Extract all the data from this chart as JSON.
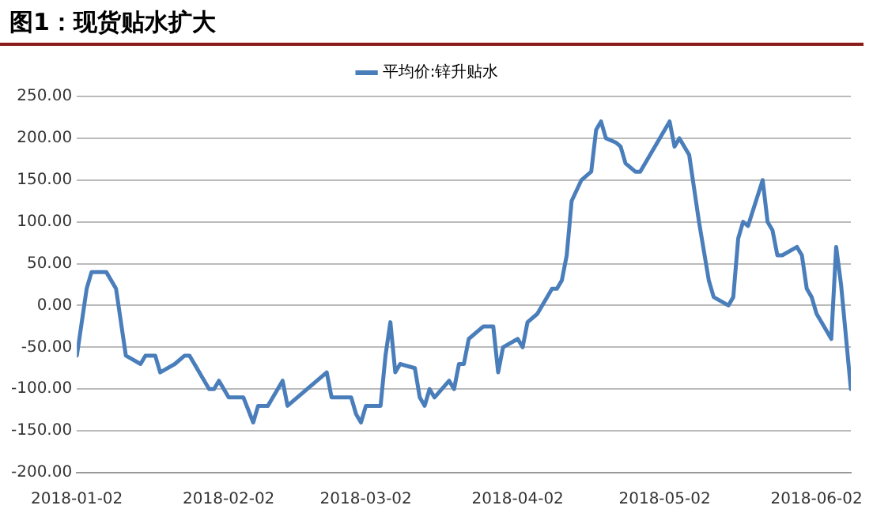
{
  "chart_data": {
    "type": "line",
    "title": "图1：现货贴水扩大",
    "x": [
      "2018-01-02",
      "2018-01-04",
      "2018-01-05",
      "2018-01-08",
      "2018-01-10",
      "2018-01-12",
      "2018-01-15",
      "2018-01-16",
      "2018-01-18",
      "2018-01-19",
      "2018-01-22",
      "2018-01-24",
      "2018-01-25",
      "2018-01-29",
      "2018-01-30",
      "2018-01-31",
      "2018-02-02",
      "2018-02-05",
      "2018-02-07",
      "2018-02-08",
      "2018-02-10",
      "2018-02-13",
      "2018-02-14",
      "2018-02-22",
      "2018-02-23",
      "2018-02-27",
      "2018-02-28",
      "2018-03-01",
      "2018-03-02",
      "2018-03-05",
      "2018-03-06",
      "2018-03-07",
      "2018-03-08",
      "2018-03-09",
      "2018-03-12",
      "2018-03-13",
      "2018-03-14",
      "2018-03-15",
      "2018-03-16",
      "2018-03-19",
      "2018-03-20",
      "2018-03-21",
      "2018-03-22",
      "2018-03-23",
      "2018-03-26",
      "2018-03-28",
      "2018-03-29",
      "2018-03-30",
      "2018-04-02",
      "2018-04-03",
      "2018-04-04",
      "2018-04-06",
      "2018-04-09",
      "2018-04-10",
      "2018-04-11",
      "2018-04-12",
      "2018-04-13",
      "2018-04-15",
      "2018-04-17",
      "2018-04-18",
      "2018-04-19",
      "2018-04-20",
      "2018-04-22",
      "2018-04-23",
      "2018-04-24",
      "2018-04-26",
      "2018-04-27",
      "2018-05-03",
      "2018-05-04",
      "2018-05-05",
      "2018-05-07",
      "2018-05-09",
      "2018-05-11",
      "2018-05-12",
      "2018-05-15",
      "2018-05-16",
      "2018-05-17",
      "2018-05-18",
      "2018-05-19",
      "2018-05-22",
      "2018-05-23",
      "2018-05-24",
      "2018-05-25",
      "2018-05-26",
      "2018-05-29",
      "2018-05-30",
      "2018-05-31",
      "2018-06-01",
      "2018-06-02",
      "2018-06-03",
      "2018-06-05",
      "2018-06-06",
      "2018-06-07",
      "2018-06-09"
    ],
    "series": [
      {
        "name": "平均价:锌升贴水",
        "color": "#4a7ebb",
        "values": [
          -60,
          20,
          40,
          40,
          20,
          -60,
          -70,
          -60,
          -60,
          -80,
          -70,
          -60,
          -60,
          -100,
          -100,
          -90,
          -110,
          -110,
          -140,
          -120,
          -120,
          -90,
          -120,
          -80,
          -110,
          -110,
          -130,
          -140,
          -120,
          -120,
          -60,
          -20,
          -80,
          -70,
          -75,
          -110,
          -120,
          -100,
          -110,
          -90,
          -100,
          -70,
          -70,
          -40,
          -25,
          -25,
          -80,
          -50,
          -40,
          -50,
          -20,
          -10,
          20,
          20,
          30,
          60,
          125,
          150,
          160,
          210,
          220,
          200,
          195,
          190,
          170,
          160,
          160,
          220,
          190,
          200,
          180,
          100,
          30,
          10,
          0,
          10,
          80,
          100,
          95,
          150,
          100,
          90,
          60,
          60,
          70,
          60,
          20,
          10,
          -10,
          -20,
          -40,
          70,
          25,
          -100
        ]
      }
    ],
    "xlim": [
      "2018-01-02",
      "2018-06-09"
    ],
    "xticks": [
      "2018-01-02",
      "2018-02-02",
      "2018-03-02",
      "2018-04-02",
      "2018-05-02",
      "2018-06-02"
    ],
    "ylim": [
      -200,
      250
    ],
    "yticks": [
      {
        "value": -200,
        "label": "-200.00"
      },
      {
        "value": -150,
        "label": "-150.00"
      },
      {
        "value": -100,
        "label": "-100.00"
      },
      {
        "value": -50,
        "label": "-50.00"
      },
      {
        "value": 0,
        "label": "0.00"
      },
      {
        "value": 50,
        "label": "50.00"
      },
      {
        "value": 100,
        "label": "100.00"
      },
      {
        "value": 150,
        "label": "150.00"
      },
      {
        "value": 200,
        "label": "200.00"
      },
      {
        "value": 250,
        "label": "250.00"
      }
    ],
    "grid": "y",
    "legend": "top",
    "marker": "none",
    "line_style": "solid"
  }
}
